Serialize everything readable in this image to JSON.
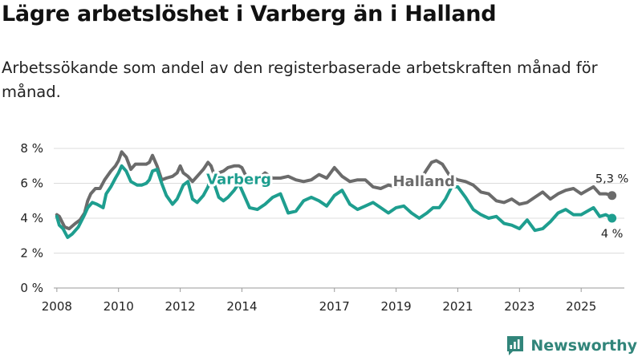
{
  "page": {
    "title": "Lägre arbetslöshet i Varberg än i Halland",
    "subtitle": "Arbetssökande som andel av den registerbaserade arbetskraften månad för månad.",
    "brand": "Newsworthy"
  },
  "colors": {
    "halland": "#6b6b6b",
    "varberg": "#1e9e8f",
    "grid": "#dcdcdc",
    "brand": "#31857a"
  },
  "chart_data": {
    "type": "line",
    "title": "Lägre arbetslöshet i Varberg än i Halland",
    "xlabel": "",
    "ylabel": "",
    "xlim": [
      2007.9,
      2026.4
    ],
    "ylim": [
      0,
      8
    ],
    "y_ticks": [
      0,
      2,
      4,
      6,
      8
    ],
    "y_tick_labels": [
      "0 %",
      "2 %",
      "4 %",
      "6 %",
      "8 %"
    ],
    "x_ticks": [
      2008,
      2010,
      2012,
      2014,
      2017,
      2019,
      2021,
      2023,
      2025
    ],
    "x_tick_labels": [
      "2008",
      "2010",
      "2012",
      "2014",
      "2017",
      "2019",
      "2021",
      "2023",
      "2025"
    ],
    "series": [
      {
        "name": "Halland",
        "label": "Halland",
        "end_label": "5,3 %",
        "x": [
          2008.0,
          2008.08,
          2008.25,
          2008.4,
          2008.6,
          2008.75,
          2008.9,
          2009.0,
          2009.1,
          2009.25,
          2009.4,
          2009.55,
          2009.75,
          2009.9,
          2010.0,
          2010.1,
          2010.25,
          2010.4,
          2010.55,
          2010.75,
          2010.9,
          2011.0,
          2011.1,
          2011.25,
          2011.4,
          2011.55,
          2011.75,
          2011.9,
          2012.0,
          2012.1,
          2012.25,
          2012.4,
          2012.55,
          2012.75,
          2012.9,
          2013.0,
          2013.1,
          2013.25,
          2013.4,
          2013.55,
          2013.75,
          2013.9,
          2014.0,
          2014.25,
          2014.5,
          2014.75,
          2015.0,
          2015.25,
          2015.5,
          2015.75,
          2016.0,
          2016.25,
          2016.5,
          2016.75,
          2017.0,
          2017.25,
          2017.5,
          2017.75,
          2018.0,
          2018.25,
          2018.5,
          2018.75,
          2019.0,
          2019.25,
          2019.5,
          2019.75,
          2020.0,
          2020.15,
          2020.3,
          2020.5,
          2020.75,
          2021.0,
          2021.25,
          2021.5,
          2021.75,
          2022.0,
          2022.25,
          2022.5,
          2022.75,
          2023.0,
          2023.25,
          2023.5,
          2023.75,
          2024.0,
          2024.25,
          2024.5,
          2024.75,
          2025.0,
          2025.2,
          2025.4,
          2025.6,
          2025.8,
          2026.0
        ],
        "values": [
          4.2,
          4.1,
          3.5,
          3.4,
          3.7,
          3.9,
          4.3,
          5.0,
          5.4,
          5.7,
          5.7,
          6.2,
          6.7,
          7.0,
          7.3,
          7.8,
          7.5,
          6.8,
          7.1,
          7.1,
          7.1,
          7.2,
          7.6,
          7.0,
          6.2,
          6.3,
          6.4,
          6.6,
          7.0,
          6.6,
          6.4,
          6.1,
          6.4,
          6.8,
          7.2,
          7.0,
          6.5,
          6.6,
          6.7,
          6.9,
          7.0,
          7.0,
          6.9,
          6.0,
          6.2,
          6.6,
          6.3,
          6.3,
          6.4,
          6.2,
          6.1,
          6.2,
          6.5,
          6.3,
          6.9,
          6.4,
          6.1,
          6.2,
          6.2,
          5.8,
          5.7,
          5.9,
          5.8,
          5.9,
          5.9,
          6.1,
          6.8,
          7.2,
          7.3,
          7.1,
          6.4,
          6.2,
          6.1,
          5.9,
          5.5,
          5.4,
          5.0,
          4.9,
          5.1,
          4.8,
          4.9,
          5.2,
          5.5,
          5.1,
          5.4,
          5.6,
          5.7,
          5.4,
          5.6,
          5.8,
          5.4,
          5.4,
          5.3
        ]
      },
      {
        "name": "Varberg",
        "label": "Varberg",
        "end_label": "4 %",
        "x": [
          2008.0,
          2008.08,
          2008.2,
          2008.35,
          2008.5,
          2008.7,
          2008.9,
          2009.0,
          2009.15,
          2009.3,
          2009.5,
          2009.6,
          2009.75,
          2009.9,
          2010.0,
          2010.1,
          2010.25,
          2010.4,
          2010.6,
          2010.75,
          2010.9,
          2011.0,
          2011.1,
          2011.25,
          2011.4,
          2011.55,
          2011.75,
          2011.9,
          2012.0,
          2012.1,
          2012.25,
          2012.4,
          2012.55,
          2012.75,
          2012.9,
          2013.0,
          2013.1,
          2013.25,
          2013.4,
          2013.55,
          2013.75,
          2013.9,
          2014.0,
          2014.25,
          2014.5,
          2014.75,
          2015.0,
          2015.25,
          2015.5,
          2015.75,
          2016.0,
          2016.25,
          2016.5,
          2016.75,
          2017.0,
          2017.25,
          2017.5,
          2017.75,
          2018.0,
          2018.25,
          2018.5,
          2018.75,
          2019.0,
          2019.25,
          2019.5,
          2019.75,
          2020.0,
          2020.2,
          2020.4,
          2020.6,
          2020.8,
          2021.0,
          2021.25,
          2021.5,
          2021.75,
          2022.0,
          2022.25,
          2022.5,
          2022.75,
          2023.0,
          2023.25,
          2023.5,
          2023.75,
          2024.0,
          2024.25,
          2024.5,
          2024.75,
          2025.0,
          2025.2,
          2025.4,
          2025.6,
          2025.8,
          2026.0
        ],
        "values": [
          4.1,
          3.6,
          3.4,
          2.9,
          3.1,
          3.5,
          4.2,
          4.6,
          4.9,
          4.8,
          4.6,
          5.4,
          5.8,
          6.3,
          6.6,
          7.0,
          6.7,
          6.1,
          5.9,
          5.9,
          6.0,
          6.2,
          6.7,
          6.8,
          6.0,
          5.3,
          4.8,
          5.1,
          5.5,
          5.9,
          6.1,
          5.1,
          4.9,
          5.3,
          5.8,
          6.4,
          6.0,
          5.2,
          5.0,
          5.2,
          5.6,
          6.0,
          5.6,
          4.6,
          4.5,
          4.8,
          5.2,
          5.4,
          4.3,
          4.4,
          5.0,
          5.2,
          5.0,
          4.7,
          5.3,
          5.6,
          4.8,
          4.5,
          4.7,
          4.9,
          4.6,
          4.3,
          4.6,
          4.7,
          4.3,
          4.0,
          4.3,
          4.6,
          4.6,
          5.1,
          5.8,
          5.8,
          5.2,
          4.5,
          4.2,
          4.0,
          4.1,
          3.7,
          3.6,
          3.4,
          3.9,
          3.3,
          3.4,
          3.8,
          4.3,
          4.5,
          4.2,
          4.2,
          4.4,
          4.6,
          4.1,
          4.2,
          4.0
        ]
      }
    ]
  }
}
